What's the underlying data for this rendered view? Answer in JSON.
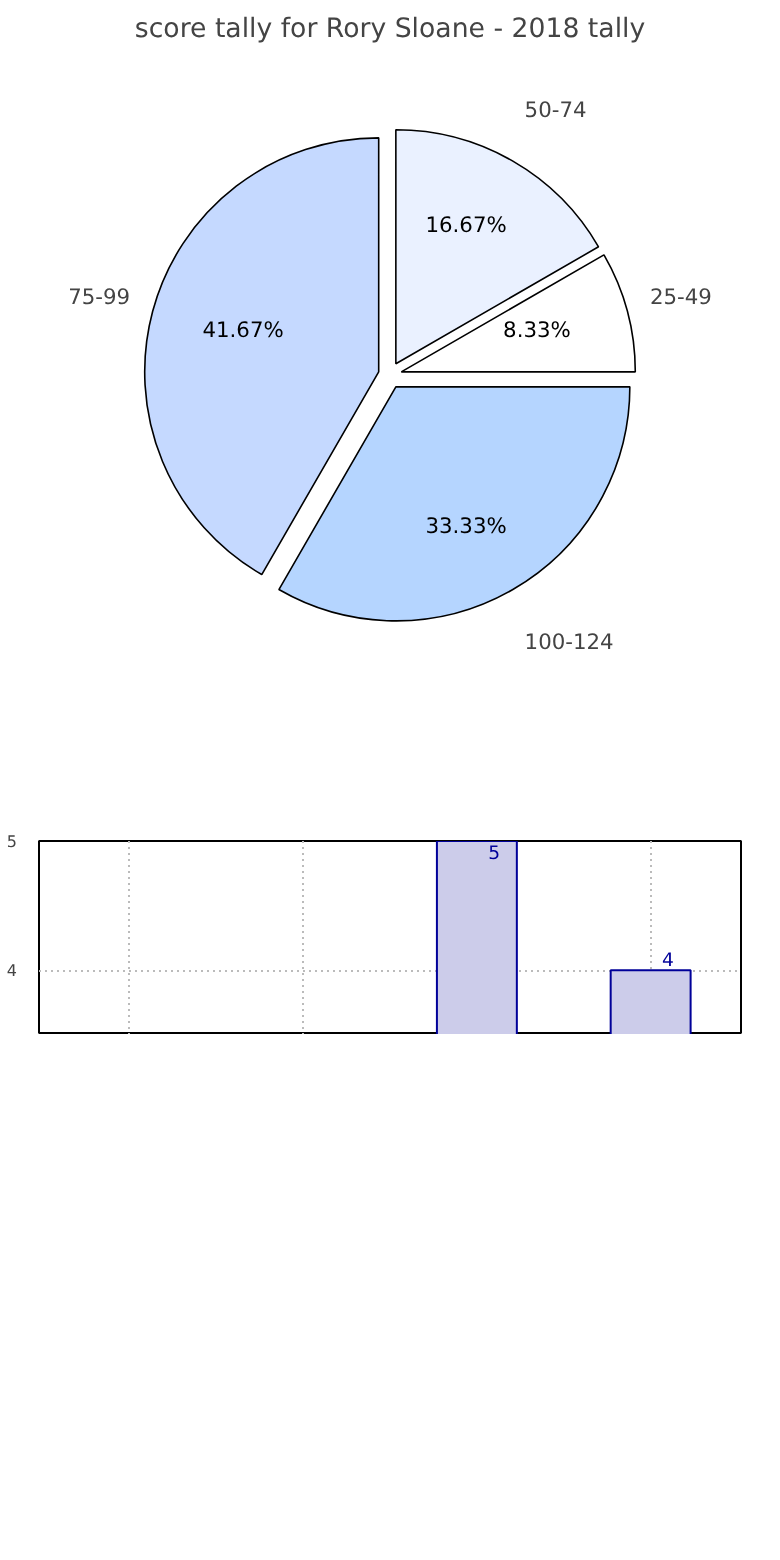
{
  "chart_data": [
    {
      "type": "pie",
      "title": "score tally for Rory Sloane - 2018 tally",
      "categories": [
        "25-49",
        "50-74",
        "75-99",
        "100-124"
      ],
      "values": [
        8.33,
        16.67,
        41.67,
        33.33
      ],
      "colors": [
        "#ffffff",
        "#eaf1ff",
        "#c5d9ff",
        "#b5d5ff"
      ],
      "value_labels": [
        "8.33%",
        "16.67%",
        "41.67%",
        "33.33%"
      ]
    },
    {
      "type": "bar",
      "categories": [
        null,
        null,
        null,
        null
      ],
      "values": [
        null,
        null,
        5,
        4
      ],
      "color": "#ccccea",
      "ylim": [
        3.5,
        5
      ],
      "yticks": [
        4,
        5
      ],
      "grid": true,
      "tick_labels": "y",
      "data_labels": true
    }
  ]
}
